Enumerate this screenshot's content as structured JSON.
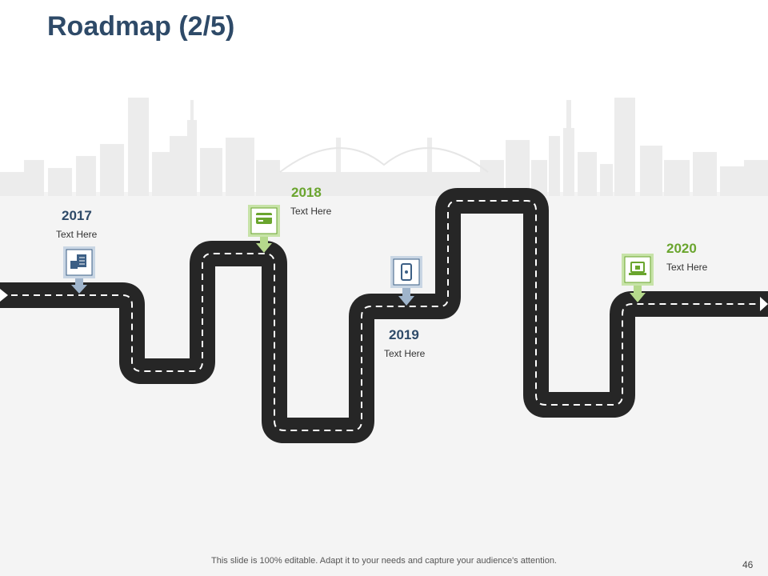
{
  "slide": {
    "title": "Roadmap (2/5)",
    "footer": "This slide is 100% editable. Adapt it to your needs and capture your audience's attention.",
    "page_number": "46"
  },
  "milestones": [
    {
      "year": "2017",
      "text": "Text Here",
      "icon": "document-hand-icon",
      "color": "#3c5f85"
    },
    {
      "year": "2018",
      "text": "Text Here",
      "icon": "credit-card-icon",
      "color": "#6aa52e"
    },
    {
      "year": "2019",
      "text": "Text Here",
      "icon": "mobile-phone-icon",
      "color": "#3c5f85"
    },
    {
      "year": "2020",
      "text": "Text Here",
      "icon": "laptop-lock-icon",
      "color": "#6aa52e"
    }
  ],
  "colors": {
    "navy": "#2e4a68",
    "green": "#6aa52e",
    "road": "#262626"
  }
}
